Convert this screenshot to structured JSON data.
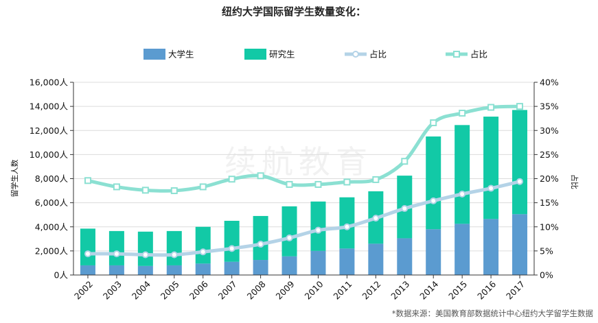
{
  "chart_data": {
    "type": "bar",
    "title": "纽约大学国际留学生数量变化：",
    "categories": [
      "2002",
      "2003",
      "2004",
      "2005",
      "2006",
      "2007",
      "2008",
      "2009",
      "2010",
      "2011",
      "2012",
      "2013",
      "2014",
      "2015",
      "2016",
      "2017"
    ],
    "stacked": true,
    "series": [
      {
        "name": "大学生",
        "type": "bar",
        "axis": "left",
        "color": "#5b9bd0",
        "values": [
          800,
          800,
          750,
          800,
          950,
          1100,
          1250,
          1550,
          2000,
          2200,
          2600,
          3050,
          3800,
          4250,
          4650,
          5050
        ]
      },
      {
        "name": "研究生",
        "type": "bar",
        "axis": "left",
        "color": "#12c9a6",
        "values": [
          3050,
          2850,
          2850,
          2850,
          3050,
          3400,
          3650,
          4150,
          4100,
          4250,
          4350,
          5200,
          7700,
          8200,
          8500,
          8650
        ]
      },
      {
        "name": "占比",
        "type": "line",
        "axis": "right",
        "color": "#b4d3e7",
        "marker": "circle",
        "values": [
          4.4,
          4.4,
          4.2,
          4.2,
          4.8,
          5.5,
          6.4,
          7.7,
          9.3,
          10.0,
          11.8,
          13.8,
          15.4,
          16.8,
          18.0,
          19.4
        ]
      },
      {
        "name": "占比",
        "type": "line",
        "axis": "right",
        "color": "#8be0d2",
        "marker": "square",
        "values": [
          19.6,
          18.3,
          17.6,
          17.5,
          18.3,
          19.9,
          20.6,
          18.8,
          18.8,
          19.3,
          19.8,
          23.6,
          31.6,
          33.6,
          34.8,
          35.0
        ]
      }
    ],
    "y_left": {
      "label": "留学生人数",
      "min": 0,
      "max": 16000,
      "ticks": [
        "0人",
        "2,000人",
        "4,000人",
        "6,000人",
        "8,000人",
        "10,000人",
        "12,000人",
        "14,000人",
        "16,000人"
      ]
    },
    "y_right": {
      "label": "占比",
      "min": 0,
      "max": 40,
      "ticks": [
        "0%",
        "5%",
        "10%",
        "15%",
        "20%",
        "25%",
        "30%",
        "35%",
        "40%"
      ]
    },
    "grid": true,
    "legend_position": "top",
    "watermark": "续航教育",
    "source": "*数据来源：美国教育部数据统计中心纽约大学留学生数据"
  }
}
